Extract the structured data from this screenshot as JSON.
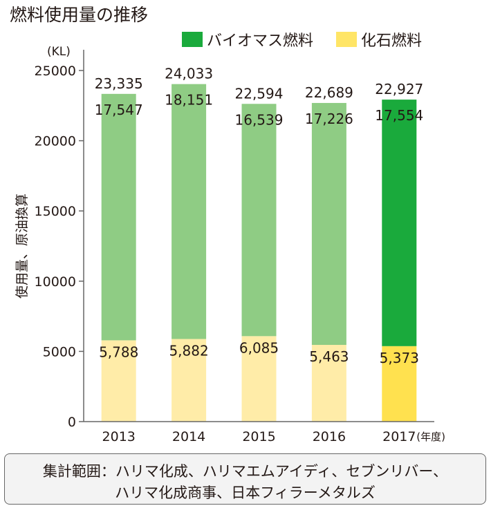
{
  "title": "燃料使用量の推移",
  "legend": [
    {
      "label": "バイオマス燃料",
      "color": "#1aaa3c"
    },
    {
      "label": "化石燃料",
      "color": "#ffe566"
    }
  ],
  "note": {
    "line1": "集計範囲：ハリマ化成、ハリマエムアイディ、セブンリバー、",
    "line2": "ハリマ化成商事、日本フィラーメタルズ"
  },
  "chart_data": {
    "type": "bar",
    "stacked": true,
    "categories": [
      "2013",
      "2014",
      "2015",
      "2016",
      "2017"
    ],
    "xlabel_suffix": "(年度)",
    "unit": "(KL)",
    "ylabel": "使用量、原油換算",
    "ylim": [
      0,
      25000
    ],
    "yticks": [
      0,
      5000,
      10000,
      15000,
      20000,
      25000
    ],
    "series": [
      {
        "name": "化石燃料",
        "values": [
          5788,
          5882,
          6085,
          5463,
          5373
        ],
        "labels": [
          "5,788",
          "5,882",
          "6,085",
          "5,463",
          "5,373"
        ]
      },
      {
        "name": "バイオマス燃料",
        "values": [
          17547,
          18151,
          16539,
          17226,
          17554
        ],
        "labels": [
          "17,547",
          "18,151",
          "16,539",
          "17,226",
          "17,554"
        ]
      }
    ],
    "totals": [
      "23,335",
      "24,033",
      "22,594",
      "22,689",
      "22,927"
    ],
    "colors": {
      "fossil_past": "#ffeca8",
      "fossil_current": "#ffe14f",
      "biomass_past": "#8fcc84",
      "biomass_current": "#1aaa3c"
    },
    "highlight_index": 4
  }
}
